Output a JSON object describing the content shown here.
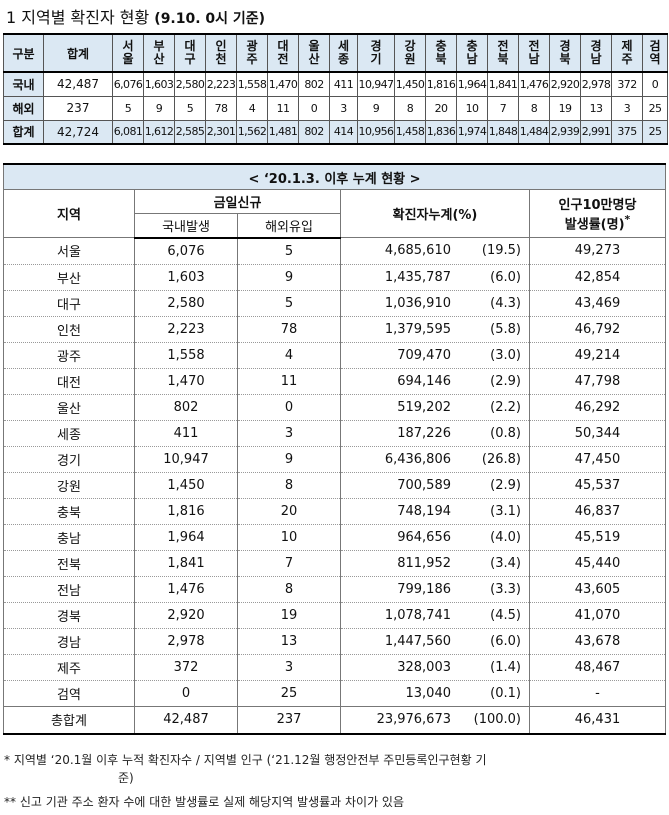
{
  "title": {
    "main": "1  지역별 확진자 현황",
    "sub": "(9.10. 0시 기준)"
  },
  "summary": {
    "header_label": "구분",
    "total_label": "합계",
    "regions": [
      "서울",
      "부산",
      "대구",
      "인천",
      "광주",
      "대전",
      "울산",
      "세종",
      "경기",
      "강원",
      "충북",
      "충남",
      "전북",
      "전남",
      "경북",
      "경남",
      "제주",
      "검역"
    ],
    "rows": [
      {
        "label": "국내",
        "total": "42,487",
        "values": [
          "6,076",
          "1,603",
          "2,580",
          "2,223",
          "1,558",
          "1,470",
          "802",
          "411",
          "10,947",
          "1,450",
          "1,816",
          "1,964",
          "1,841",
          "1,476",
          "2,920",
          "2,978",
          "372",
          "0"
        ]
      },
      {
        "label": "해외",
        "total": "237",
        "values": [
          "5",
          "9",
          "5",
          "78",
          "4",
          "11",
          "0",
          "3",
          "9",
          "8",
          "20",
          "10",
          "7",
          "8",
          "19",
          "13",
          "3",
          "25"
        ]
      },
      {
        "label": "합계",
        "total": "42,724",
        "values": [
          "6,081",
          "1,612",
          "2,585",
          "2,301",
          "1,562",
          "1,481",
          "802",
          "414",
          "10,956",
          "1,458",
          "1,836",
          "1,974",
          "1,848",
          "1,484",
          "2,939",
          "2,991",
          "375",
          "25"
        ]
      }
    ]
  },
  "cumulative": {
    "caption": "< ‘20.1.3. 이후 누계 현황 >",
    "headers": {
      "region": "지역",
      "today": "금일신규",
      "domestic": "국내발생",
      "overseas": "해외유입",
      "cumulative": "확진자누계(%)",
      "rate_line1": "인구10만명당",
      "rate_line2": "발생률(명)",
      "rate_mark": "*"
    },
    "rows": [
      {
        "region": "서울",
        "domestic": "6,076",
        "overseas": "5",
        "cum": "4,685,610",
        "pct": "(19.5)",
        "rate": "49,273"
      },
      {
        "region": "부산",
        "domestic": "1,603",
        "overseas": "9",
        "cum": "1,435,787",
        "pct": "(6.0)",
        "rate": "42,854"
      },
      {
        "region": "대구",
        "domestic": "2,580",
        "overseas": "5",
        "cum": "1,036,910",
        "pct": "(4.3)",
        "rate": "43,469"
      },
      {
        "region": "인천",
        "domestic": "2,223",
        "overseas": "78",
        "cum": "1,379,595",
        "pct": "(5.8)",
        "rate": "46,792"
      },
      {
        "region": "광주",
        "domestic": "1,558",
        "overseas": "4",
        "cum": "709,470",
        "pct": "(3.0)",
        "rate": "49,214"
      },
      {
        "region": "대전",
        "domestic": "1,470",
        "overseas": "11",
        "cum": "694,146",
        "pct": "(2.9)",
        "rate": "47,798"
      },
      {
        "region": "울산",
        "domestic": "802",
        "overseas": "0",
        "cum": "519,202",
        "pct": "(2.2)",
        "rate": "46,292"
      },
      {
        "region": "세종",
        "domestic": "411",
        "overseas": "3",
        "cum": "187,226",
        "pct": "(0.8)",
        "rate": "50,344"
      },
      {
        "region": "경기",
        "domestic": "10,947",
        "overseas": "9",
        "cum": "6,436,806",
        "pct": "(26.8)",
        "rate": "47,450"
      },
      {
        "region": "강원",
        "domestic": "1,450",
        "overseas": "8",
        "cum": "700,589",
        "pct": "(2.9)",
        "rate": "45,537"
      },
      {
        "region": "충북",
        "domestic": "1,816",
        "overseas": "20",
        "cum": "748,194",
        "pct": "(3.1)",
        "rate": "46,837"
      },
      {
        "region": "충남",
        "domestic": "1,964",
        "overseas": "10",
        "cum": "964,656",
        "pct": "(4.0)",
        "rate": "45,519"
      },
      {
        "region": "전북",
        "domestic": "1,841",
        "overseas": "7",
        "cum": "811,952",
        "pct": "(3.4)",
        "rate": "45,440"
      },
      {
        "region": "전남",
        "domestic": "1,476",
        "overseas": "8",
        "cum": "799,186",
        "pct": "(3.3)",
        "rate": "43,605"
      },
      {
        "region": "경북",
        "domestic": "2,920",
        "overseas": "19",
        "cum": "1,078,741",
        "pct": "(4.5)",
        "rate": "41,070"
      },
      {
        "region": "경남",
        "domestic": "2,978",
        "overseas": "13",
        "cum": "1,447,560",
        "pct": "(6.0)",
        "rate": "43,678"
      },
      {
        "region": "제주",
        "domestic": "372",
        "overseas": "3",
        "cum": "328,003",
        "pct": "(1.4)",
        "rate": "48,467"
      },
      {
        "region": "검역",
        "domestic": "0",
        "overseas": "25",
        "cum": "13,040",
        "pct": "(0.1)",
        "rate": "-"
      }
    ],
    "total": {
      "region": "총합계",
      "domestic": "42,487",
      "overseas": "237",
      "cum": "23,976,673",
      "pct": "(100.0)",
      "rate": "46,431"
    }
  },
  "notes": {
    "note1": "* 지역별 ‘20.1월 이후 누적 확진자수 / 지역별 인구 (‘21.12월 행정안전부 주민등록인구현황 기",
    "note1_cont": "준)",
    "note2": "** 신고 기관 주소 환자 수에 대한 발생률로 실제 해당지역 발생률과 차이가 있음"
  }
}
